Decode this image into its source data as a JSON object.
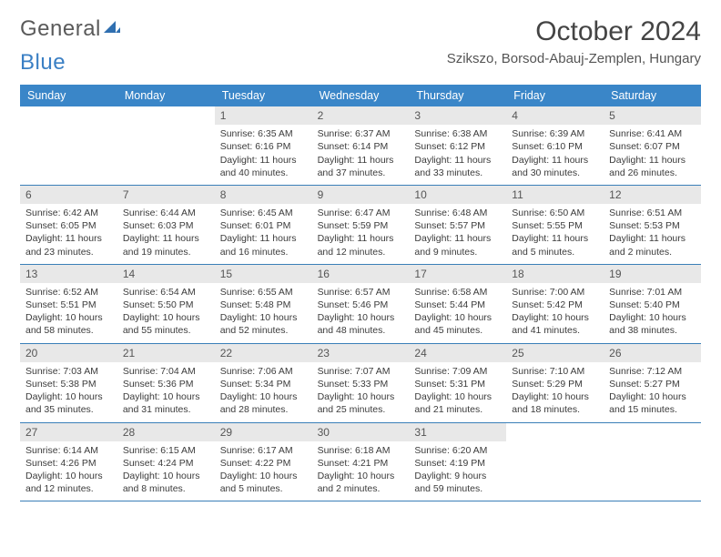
{
  "logo": {
    "word1": "General",
    "word2": "Blue"
  },
  "title": "October 2024",
  "location": "Szikszo, Borsod-Abauj-Zemplen, Hungary",
  "header_bg": "#3a86c8",
  "rule_color": "#3a7fb8",
  "daynum_bg": "#e8e8e8",
  "dayNames": [
    "Sunday",
    "Monday",
    "Tuesday",
    "Wednesday",
    "Thursday",
    "Friday",
    "Saturday"
  ],
  "startDayIndex": 2,
  "daysInMonth": 31,
  "days": {
    "1": {
      "sunrise": "6:35 AM",
      "sunset": "6:16 PM",
      "daylight": "11 hours and 40 minutes."
    },
    "2": {
      "sunrise": "6:37 AM",
      "sunset": "6:14 PM",
      "daylight": "11 hours and 37 minutes."
    },
    "3": {
      "sunrise": "6:38 AM",
      "sunset": "6:12 PM",
      "daylight": "11 hours and 33 minutes."
    },
    "4": {
      "sunrise": "6:39 AM",
      "sunset": "6:10 PM",
      "daylight": "11 hours and 30 minutes."
    },
    "5": {
      "sunrise": "6:41 AM",
      "sunset": "6:07 PM",
      "daylight": "11 hours and 26 minutes."
    },
    "6": {
      "sunrise": "6:42 AM",
      "sunset": "6:05 PM",
      "daylight": "11 hours and 23 minutes."
    },
    "7": {
      "sunrise": "6:44 AM",
      "sunset": "6:03 PM",
      "daylight": "11 hours and 19 minutes."
    },
    "8": {
      "sunrise": "6:45 AM",
      "sunset": "6:01 PM",
      "daylight": "11 hours and 16 minutes."
    },
    "9": {
      "sunrise": "6:47 AM",
      "sunset": "5:59 PM",
      "daylight": "11 hours and 12 minutes."
    },
    "10": {
      "sunrise": "6:48 AM",
      "sunset": "5:57 PM",
      "daylight": "11 hours and 9 minutes."
    },
    "11": {
      "sunrise": "6:50 AM",
      "sunset": "5:55 PM",
      "daylight": "11 hours and 5 minutes."
    },
    "12": {
      "sunrise": "6:51 AM",
      "sunset": "5:53 PM",
      "daylight": "11 hours and 2 minutes."
    },
    "13": {
      "sunrise": "6:52 AM",
      "sunset": "5:51 PM",
      "daylight": "10 hours and 58 minutes."
    },
    "14": {
      "sunrise": "6:54 AM",
      "sunset": "5:50 PM",
      "daylight": "10 hours and 55 minutes."
    },
    "15": {
      "sunrise": "6:55 AM",
      "sunset": "5:48 PM",
      "daylight": "10 hours and 52 minutes."
    },
    "16": {
      "sunrise": "6:57 AM",
      "sunset": "5:46 PM",
      "daylight": "10 hours and 48 minutes."
    },
    "17": {
      "sunrise": "6:58 AM",
      "sunset": "5:44 PM",
      "daylight": "10 hours and 45 minutes."
    },
    "18": {
      "sunrise": "7:00 AM",
      "sunset": "5:42 PM",
      "daylight": "10 hours and 41 minutes."
    },
    "19": {
      "sunrise": "7:01 AM",
      "sunset": "5:40 PM",
      "daylight": "10 hours and 38 minutes."
    },
    "20": {
      "sunrise": "7:03 AM",
      "sunset": "5:38 PM",
      "daylight": "10 hours and 35 minutes."
    },
    "21": {
      "sunrise": "7:04 AM",
      "sunset": "5:36 PM",
      "daylight": "10 hours and 31 minutes."
    },
    "22": {
      "sunrise": "7:06 AM",
      "sunset": "5:34 PM",
      "daylight": "10 hours and 28 minutes."
    },
    "23": {
      "sunrise": "7:07 AM",
      "sunset": "5:33 PM",
      "daylight": "10 hours and 25 minutes."
    },
    "24": {
      "sunrise": "7:09 AM",
      "sunset": "5:31 PM",
      "daylight": "10 hours and 21 minutes."
    },
    "25": {
      "sunrise": "7:10 AM",
      "sunset": "5:29 PM",
      "daylight": "10 hours and 18 minutes."
    },
    "26": {
      "sunrise": "7:12 AM",
      "sunset": "5:27 PM",
      "daylight": "10 hours and 15 minutes."
    },
    "27": {
      "sunrise": "6:14 AM",
      "sunset": "4:26 PM",
      "daylight": "10 hours and 12 minutes."
    },
    "28": {
      "sunrise": "6:15 AM",
      "sunset": "4:24 PM",
      "daylight": "10 hours and 8 minutes."
    },
    "29": {
      "sunrise": "6:17 AM",
      "sunset": "4:22 PM",
      "daylight": "10 hours and 5 minutes."
    },
    "30": {
      "sunrise": "6:18 AM",
      "sunset": "4:21 PM",
      "daylight": "10 hours and 2 minutes."
    },
    "31": {
      "sunrise": "6:20 AM",
      "sunset": "4:19 PM",
      "daylight": "9 hours and 59 minutes."
    }
  }
}
